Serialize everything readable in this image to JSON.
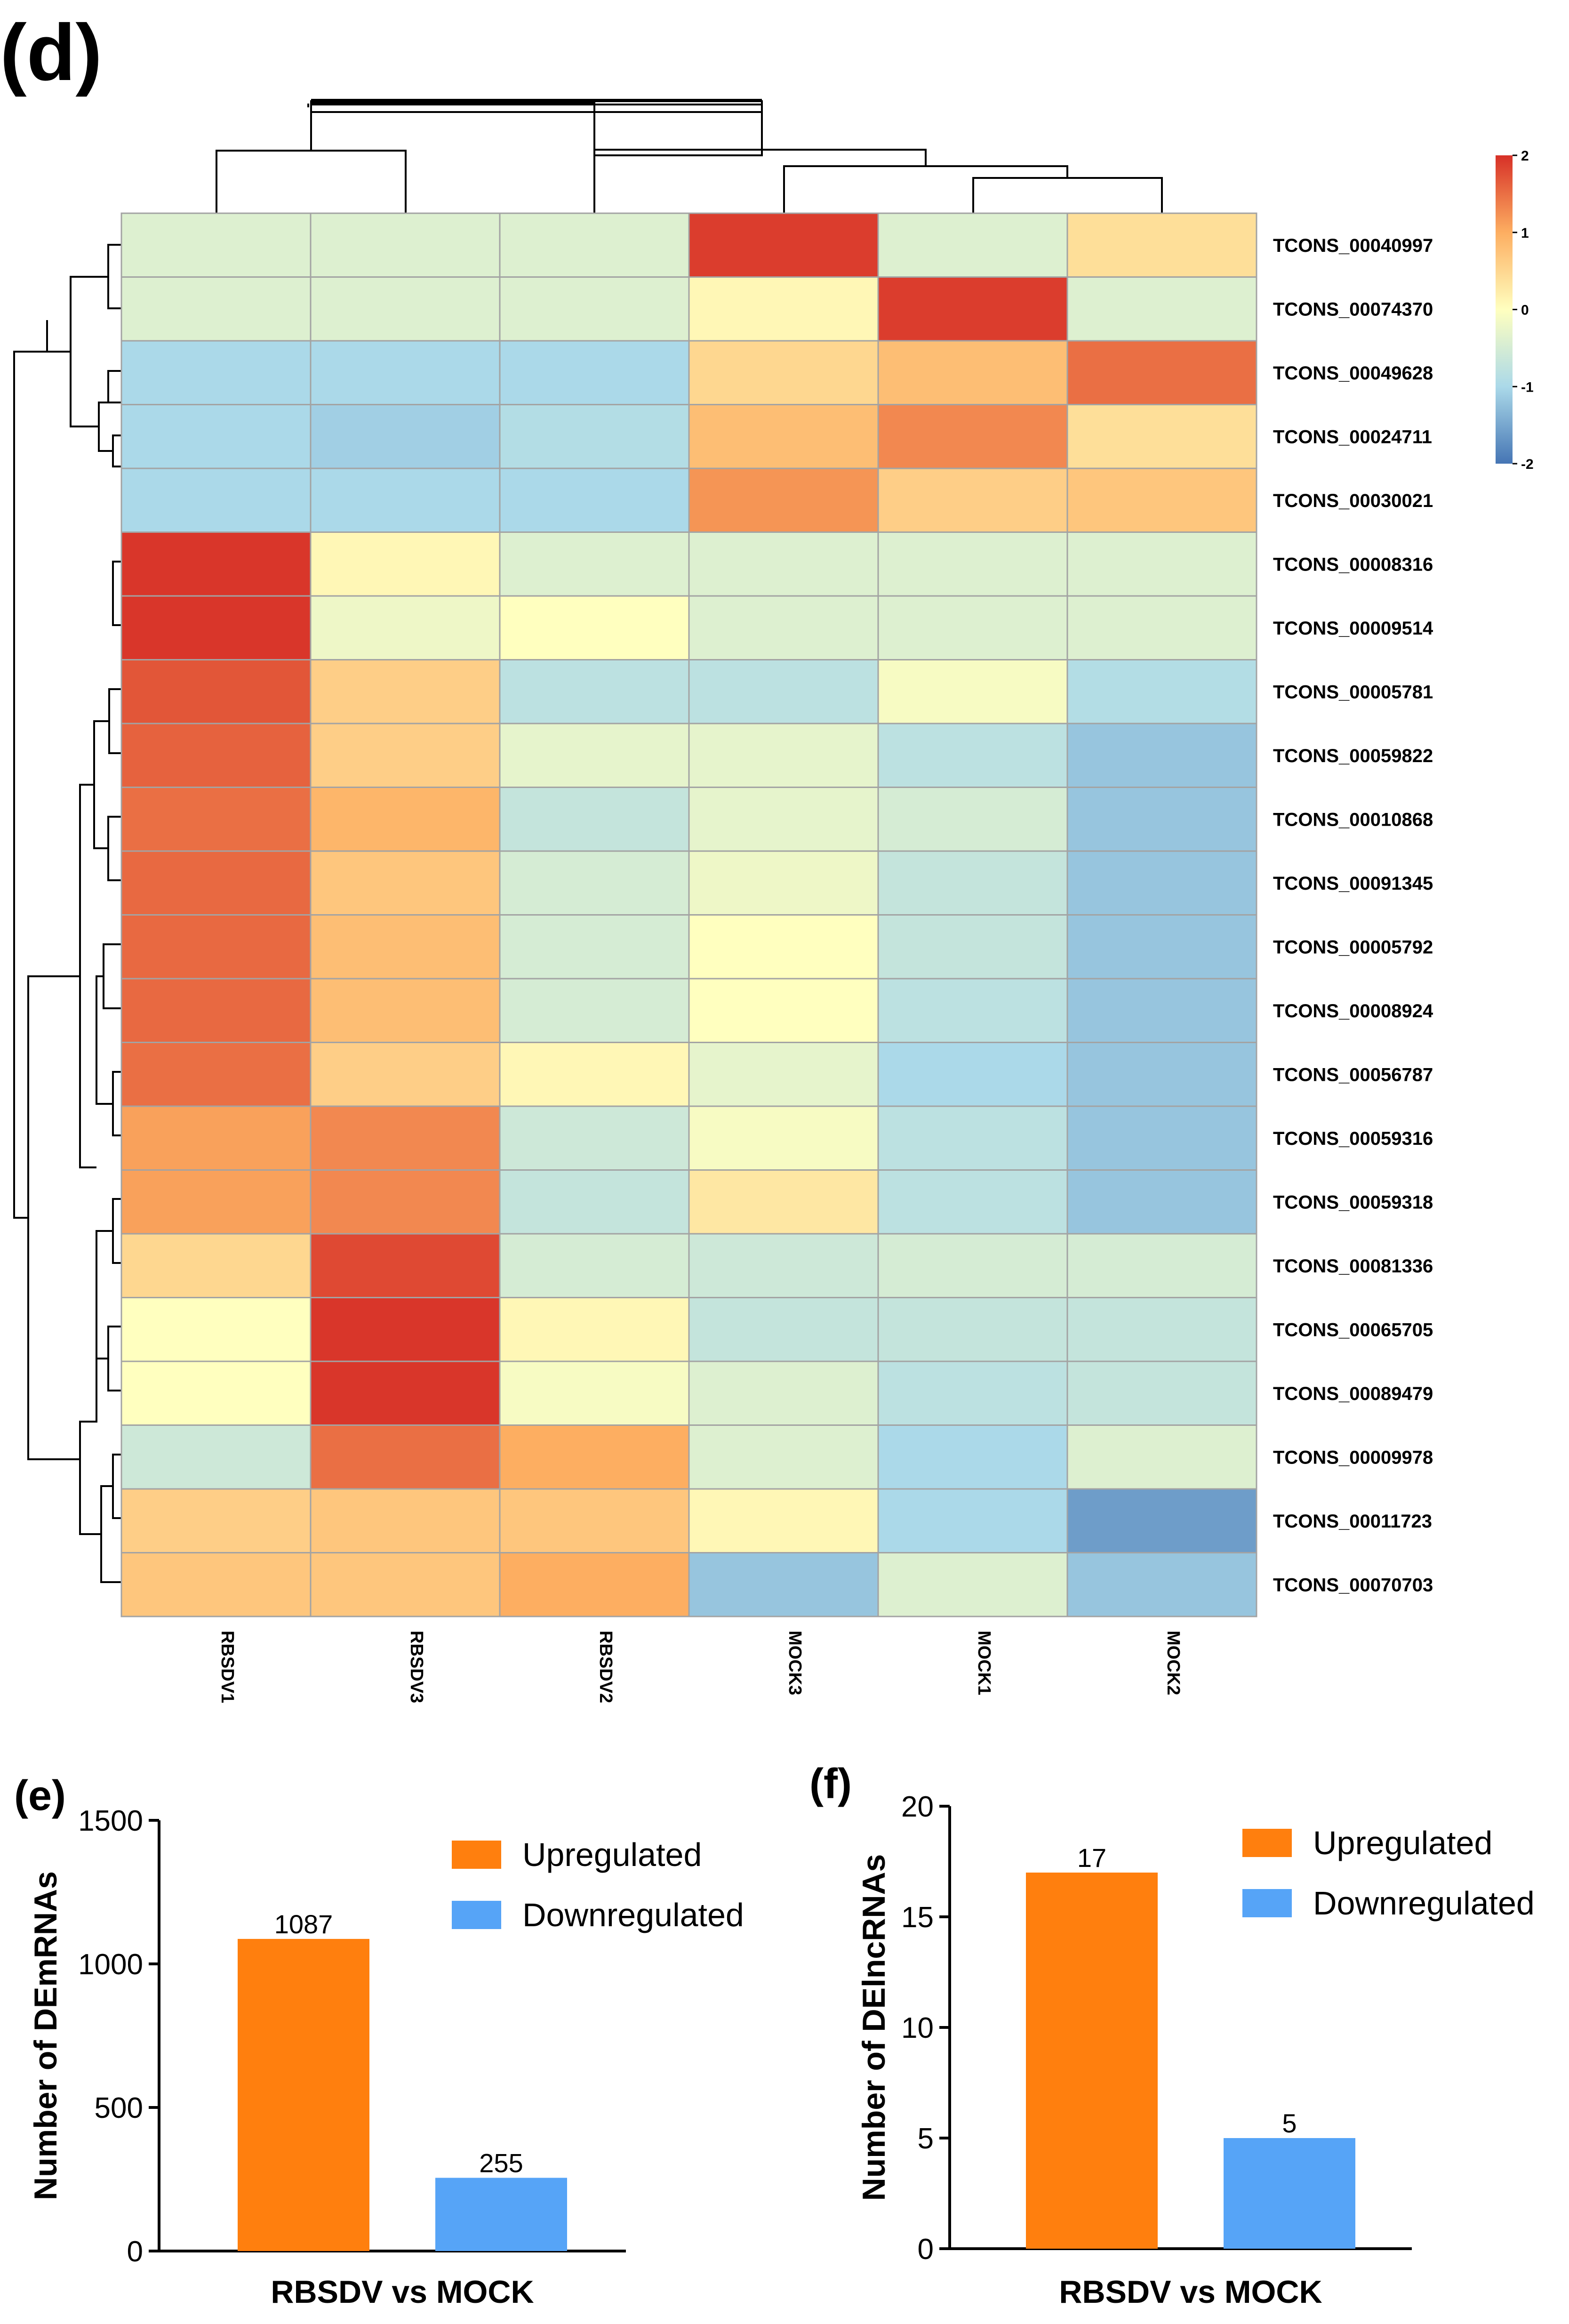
{
  "panel_labels": {
    "d": "(d)",
    "e": "(e)",
    "f": "(f)"
  },
  "colors": {
    "upregulated": "#ff7f0e",
    "downregulated": "#56a4f7",
    "grid": "#a3a3a3"
  },
  "chart_data": [
    {
      "type": "heatmap",
      "panel": "(d)",
      "columns": [
        "RBSDV1",
        "RBSDV3",
        "RBSDV2",
        "MOCK3",
        "MOCK1",
        "MOCK2"
      ],
      "rows": [
        "TCONS_00040997",
        "TCONS_00074370",
        "TCONS_00049628",
        "TCONS_00024711",
        "TCONS_00030021",
        "TCONS_00008316",
        "TCONS_00009514",
        "TCONS_00005781",
        "TCONS_00059822",
        "TCONS_00010868",
        "TCONS_00091345",
        "TCONS_00005792",
        "TCONS_00008924",
        "TCONS_00056787",
        "TCONS_00059316",
        "TCONS_00059318",
        "TCONS_00081336",
        "TCONS_00065705",
        "TCONS_00089479",
        "TCONS_00009978",
        "TCONS_00011723",
        "TCONS_00070703"
      ],
      "values": [
        [
          -0.4,
          -0.4,
          -0.4,
          1.9,
          -0.4,
          0.4
        ],
        [
          -0.4,
          -0.4,
          -0.4,
          0.1,
          1.9,
          -0.4
        ],
        [
          -1.0,
          -1.0,
          -1.0,
          0.5,
          0.8,
          1.5
        ],
        [
          -1.0,
          -1.1,
          -0.9,
          0.8,
          1.3,
          0.4
        ],
        [
          -1.0,
          -1.0,
          -1.0,
          1.2,
          0.6,
          0.7
        ],
        [
          1.95,
          0.1,
          -0.4,
          -0.4,
          -0.4,
          -0.4
        ],
        [
          1.95,
          -0.2,
          0.0,
          -0.4,
          -0.4,
          -0.4
        ],
        [
          1.7,
          0.6,
          -0.8,
          -0.8,
          -0.1,
          -0.9
        ],
        [
          1.6,
          0.6,
          -0.3,
          -0.3,
          -0.8,
          -1.2
        ],
        [
          1.5,
          0.9,
          -0.7,
          -0.3,
          -0.5,
          -1.2
        ],
        [
          1.55,
          0.7,
          -0.5,
          -0.2,
          -0.7,
          -1.2
        ],
        [
          1.55,
          0.8,
          -0.5,
          0.0,
          -0.7,
          -1.2
        ],
        [
          1.55,
          0.8,
          -0.5,
          0.0,
          -0.8,
          -1.2
        ],
        [
          1.5,
          0.6,
          0.1,
          -0.3,
          -1.0,
          -1.2
        ],
        [
          1.1,
          1.3,
          -0.6,
          -0.1,
          -0.8,
          -1.2
        ],
        [
          1.1,
          1.3,
          -0.7,
          0.3,
          -0.8,
          -1.2
        ],
        [
          0.5,
          1.8,
          -0.5,
          -0.6,
          -0.5,
          -0.5
        ],
        [
          0.0,
          1.95,
          0.1,
          -0.7,
          -0.7,
          -0.7
        ],
        [
          0.0,
          1.95,
          -0.1,
          -0.4,
          -0.8,
          -0.7
        ],
        [
          -0.6,
          1.5,
          1.0,
          -0.4,
          -1.0,
          -0.4
        ],
        [
          0.6,
          0.7,
          0.7,
          0.1,
          -1.0,
          -1.6
        ],
        [
          0.7,
          0.7,
          1.0,
          -1.2,
          -0.4,
          -1.2
        ]
      ],
      "color_scale": {
        "min": -2,
        "max": 2,
        "ticks": [
          "2",
          "1",
          "0",
          "-1",
          "-2"
        ],
        "colors": [
          "#4575b4",
          "#ffffbf",
          "#d73027"
        ]
      }
    },
    {
      "type": "bar",
      "panel": "(e)",
      "categories": [
        "Upregulated",
        "Downregulated"
      ],
      "values": [
        1087,
        255
      ],
      "value_labels": [
        "1087",
        "255"
      ],
      "ylabel": "Number of DEmRNAs",
      "xlabel": "RBSDV vs MOCK",
      "ylim": [
        0,
        1500
      ],
      "yticks": [
        "0",
        "500",
        "1000",
        "1500"
      ],
      "legend": [
        "Upregulated",
        "Downregulated"
      ],
      "legend_position": "top-right"
    },
    {
      "type": "bar",
      "panel": "(f)",
      "categories": [
        "Upregulated",
        "Downregulated"
      ],
      "values": [
        17,
        5
      ],
      "value_labels": [
        "17",
        "5"
      ],
      "ylabel": "Number of DElncRNAs",
      "xlabel": "RBSDV vs MOCK",
      "ylim": [
        0,
        20
      ],
      "yticks": [
        "0",
        "5",
        "10",
        "15",
        "20"
      ],
      "legend": [
        "Upregulated",
        "Downregulated"
      ],
      "legend_position": "top-right"
    }
  ]
}
